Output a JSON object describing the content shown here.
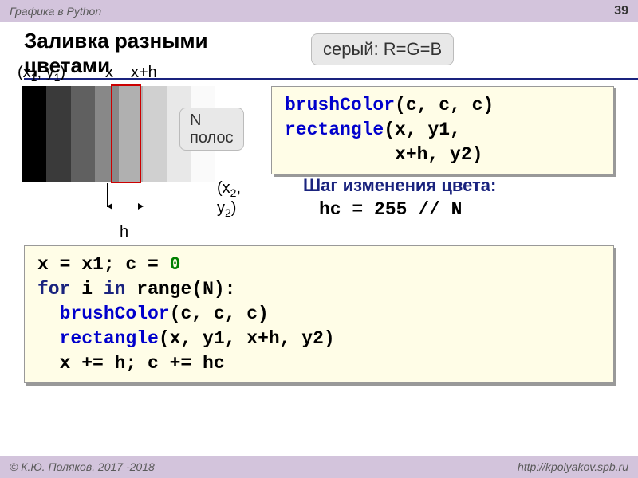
{
  "header": {
    "left": "Графика в Python",
    "page": "39"
  },
  "title": "Заливка разными цветами",
  "callout_gray": "серый: R=G=B",
  "callout_n": "N\nполос",
  "diagram": {
    "xy1": "(x₁, y₁)",
    "x": "x",
    "xh": "x+h",
    "xy2": "(x₂, y₂)",
    "h": "h",
    "strip_colors": [
      "#000000",
      "#3a3a3a",
      "#606060",
      "#888888",
      "#b0b0b0",
      "#d0d0d0",
      "#e8e8e8",
      "#fafafa"
    ]
  },
  "code1": {
    "lines": [
      [
        {
          "t": "brushColor",
          "c": "kw-blue"
        },
        {
          "t": "(c, c, c)",
          "c": ""
        }
      ],
      [
        {
          "t": "rectangle",
          "c": "kw-blue"
        },
        {
          "t": "(x, y1,",
          "c": ""
        }
      ],
      [
        {
          "t": "          x+h, y2)",
          "c": ""
        }
      ]
    ]
  },
  "step": {
    "label": "Шаг изменения цвета:",
    "code": "hc = 255 // N"
  },
  "code2": {
    "lines": [
      [
        {
          "t": "x = x1; c = ",
          "c": ""
        },
        {
          "t": "0",
          "c": "kw-green"
        }
      ],
      [
        {
          "t": "for",
          "c": "kw-navy"
        },
        {
          "t": " i ",
          "c": ""
        },
        {
          "t": "in",
          "c": "kw-navy"
        },
        {
          "t": " range(N):",
          "c": ""
        }
      ],
      [
        {
          "t": "  ",
          "c": ""
        },
        {
          "t": "brushColor",
          "c": "kw-blue"
        },
        {
          "t": "(c, c, c)",
          "c": ""
        }
      ],
      [
        {
          "t": "  ",
          "c": ""
        },
        {
          "t": "rectangle",
          "c": "kw-blue"
        },
        {
          "t": "(x, y1, x+h, y2)",
          "c": ""
        }
      ],
      [
        {
          "t": "  x += h; c += hc",
          "c": ""
        }
      ]
    ]
  },
  "footer": {
    "left": "© К.Ю. Поляков, 2017 -2018",
    "right": "http://kpolyakov.spb.ru"
  }
}
